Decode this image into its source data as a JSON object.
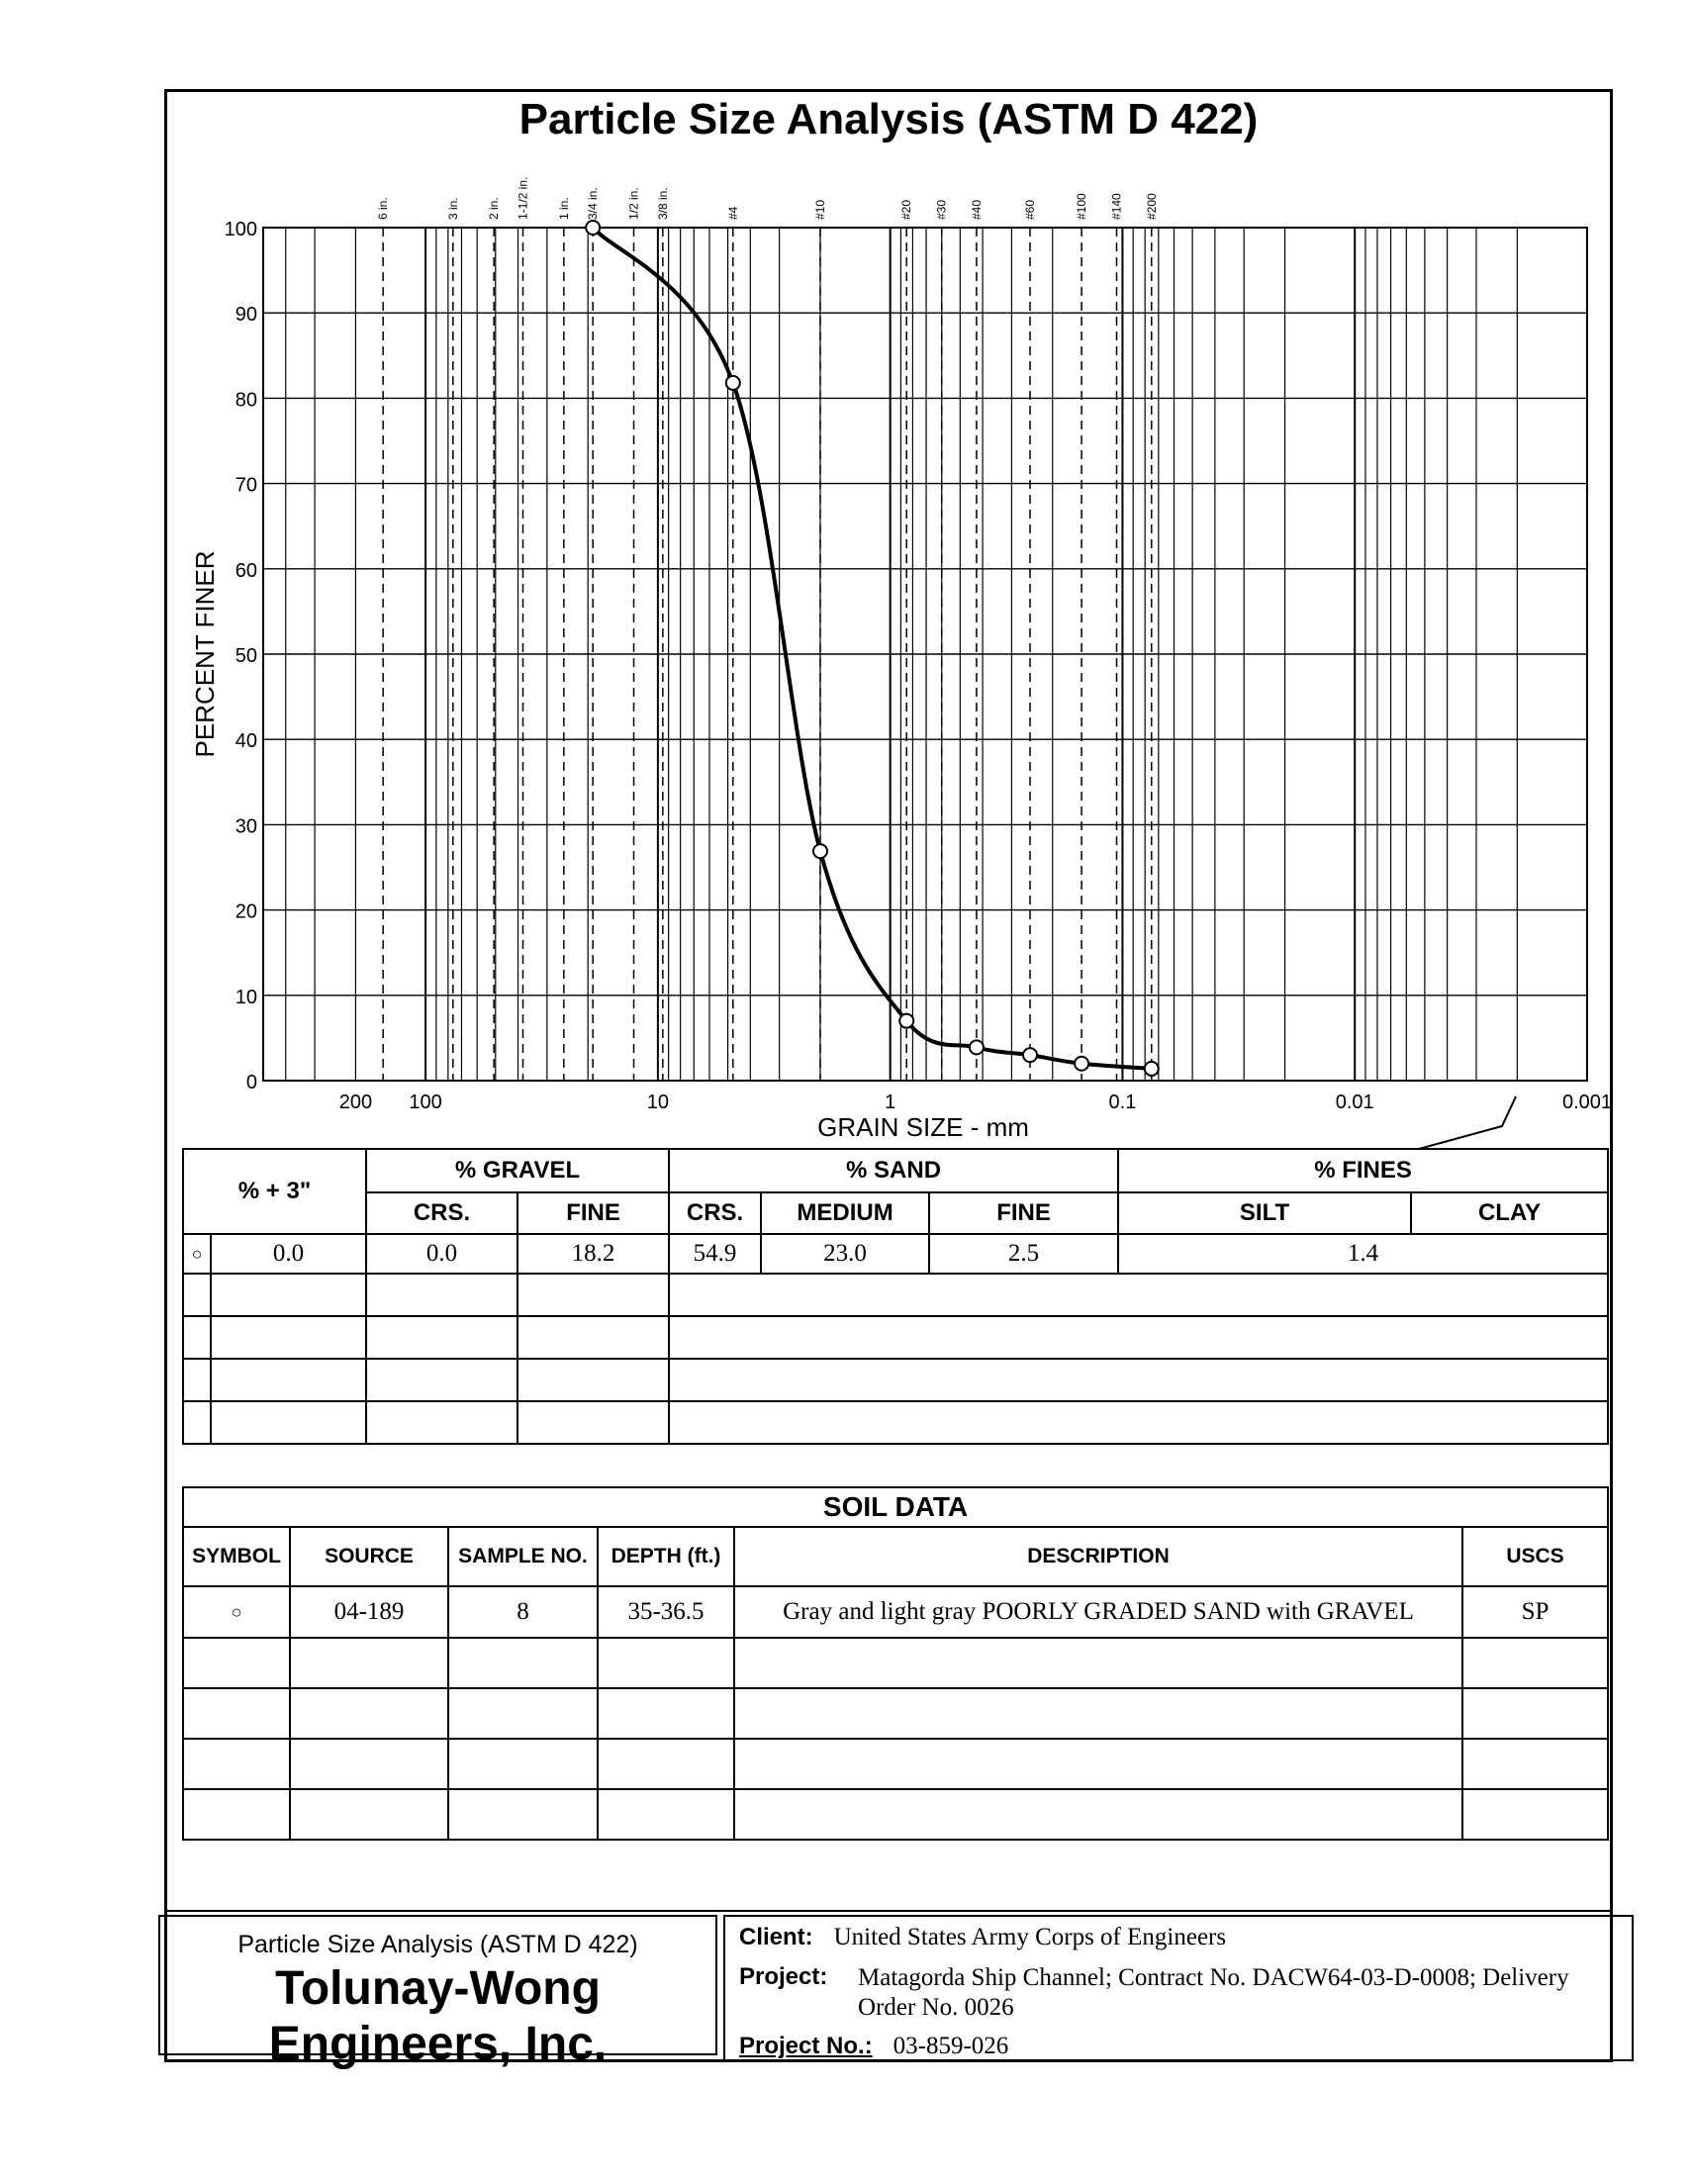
{
  "page_title": "Particle Size Analysis (ASTM D 422)",
  "chart_data": {
    "type": "line",
    "title": "Particle Size Analysis (ASTM D 422)",
    "xlabel": "GRAIN SIZE - mm",
    "ylabel": "PERCENT FINER",
    "x_scale": "log",
    "x_reversed": true,
    "xlim": [
      500,
      0.001
    ],
    "ylim": [
      0,
      100
    ],
    "grid": true,
    "x_tick_labels": [
      {
        "value": 200,
        "label": "200"
      },
      {
        "value": 100,
        "label": "100"
      },
      {
        "value": 10,
        "label": "10"
      },
      {
        "value": 1,
        "label": "1"
      },
      {
        "value": 0.1,
        "label": "0.1"
      },
      {
        "value": 0.01,
        "label": "0.01"
      },
      {
        "value": 0.001,
        "label": "0.001"
      }
    ],
    "y_ticks": [
      0,
      10,
      20,
      30,
      40,
      50,
      60,
      70,
      80,
      90,
      100
    ],
    "sieve_labels": [
      {
        "label": "6 in.",
        "size": 152.4
      },
      {
        "label": "3 in.",
        "size": 76.2
      },
      {
        "label": "2 in.",
        "size": 50.8
      },
      {
        "label": "1-1/2 in.",
        "size": 38.1
      },
      {
        "label": "1 in.",
        "size": 25.4
      },
      {
        "label": "3/4 in.",
        "size": 19.05
      },
      {
        "label": "1/2 in.",
        "size": 12.7
      },
      {
        "label": "3/8 in.",
        "size": 9.525
      },
      {
        "label": "#4",
        "size": 4.75
      },
      {
        "label": "#10",
        "size": 2.0
      },
      {
        "label": "#20",
        "size": 0.85
      },
      {
        "label": "#30",
        "size": 0.6
      },
      {
        "label": "#40",
        "size": 0.425
      },
      {
        "label": "#60",
        "size": 0.25
      },
      {
        "label": "#100",
        "size": 0.15
      },
      {
        "label": "#140",
        "size": 0.106
      },
      {
        "label": "#200",
        "size": 0.075
      }
    ],
    "series": [
      {
        "marker": "circle",
        "points": [
          {
            "x": 19.05,
            "y": 100
          },
          {
            "x": 4.75,
            "y": 81.8
          },
          {
            "x": 2.0,
            "y": 26.9
          },
          {
            "x": 0.85,
            "y": 7.0
          },
          {
            "x": 0.425,
            "y": 3.9
          },
          {
            "x": 0.25,
            "y": 3.0
          },
          {
            "x": 0.15,
            "y": 2.0
          },
          {
            "x": 0.075,
            "y": 1.4
          }
        ]
      }
    ]
  },
  "gradation_table": {
    "headers": {
      "plus3": "% + 3\"",
      "gravel": "% GRAVEL",
      "sand": "% SAND",
      "fines": "% FINES",
      "gravel_crs": "CRS.",
      "gravel_fine": "FINE",
      "sand_crs": "CRS.",
      "sand_medium": "MEDIUM",
      "sand_fine": "FINE",
      "silt": "SILT",
      "clay": "CLAY"
    },
    "rows": [
      {
        "symbol": "○",
        "plus3": "0.0",
        "gravel_crs": "0.0",
        "gravel_fine": "18.2",
        "sand_crs": "54.9",
        "sand_medium": "23.0",
        "sand_fine": "2.5",
        "fines": "1.4"
      }
    ]
  },
  "soil_data": {
    "title": "SOIL DATA",
    "headers": {
      "symbol": "SYMBOL",
      "source": "SOURCE",
      "sample_no": "SAMPLE NO.",
      "depth": "DEPTH (ft.)",
      "description": "DESCRIPTION",
      "uscs": "USCS"
    },
    "rows": [
      {
        "symbol": "○",
        "source": "04-189",
        "sample_no": "8",
        "depth": "35-36.5",
        "description": "Gray and light gray POORLY GRADED SAND with GRAVEL",
        "uscs": "SP"
      }
    ]
  },
  "footer": {
    "report_name": "Particle Size Analysis (ASTM D 422)",
    "company_line1": "Tolunay-Wong",
    "company_line2": "Engineers, Inc.",
    "client_label": "Client:",
    "client": "United States Army Corps of Engineers",
    "project_label": "Project:",
    "project_line1": "Matagorda Ship Channel; Contract No. DACW64-03-D-0008;  Delivery",
    "project_line2": "Order No. 0026",
    "project_no_label": "Project No.:",
    "project_no": "03-859-026"
  }
}
